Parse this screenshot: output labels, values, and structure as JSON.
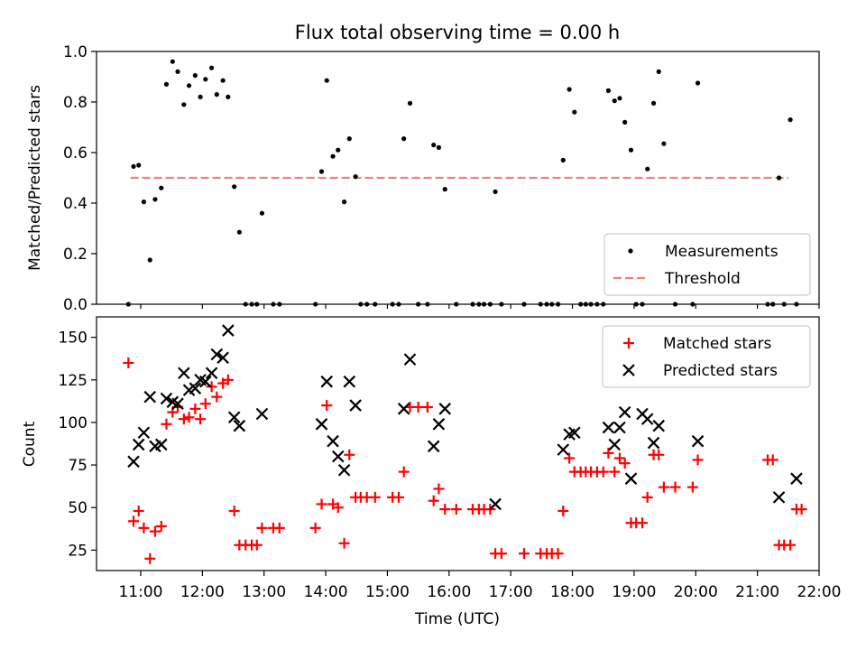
{
  "title": "Flux total observing time = 0.00 h",
  "chart_data": [
    {
      "type": "scatter",
      "title": "Flux total observing time = 0.00 h",
      "xlabel": "",
      "ylabel": "Matched/Predicted stars",
      "xlim": [
        "10:17",
        "22:00"
      ],
      "ylim": [
        0,
        1.0
      ],
      "yticks": [
        0.0,
        0.2,
        0.4,
        0.6,
        0.8,
        1.0
      ],
      "ytick_labels": [
        "0.0",
        "0.2",
        "0.4",
        "0.6",
        "0.8",
        "1.0"
      ],
      "legend": {
        "position": "lower-right",
        "entries": [
          "Measurements",
          "Threshold"
        ]
      },
      "threshold": {
        "name": "Threshold",
        "value": 0.5,
        "x_range": [
          "10:50",
          "21:30"
        ],
        "color": "#f08080"
      },
      "series": [
        {
          "name": "Measurements",
          "color": "#000000",
          "marker": "dot",
          "points": [
            [
              "10:48",
              0.0
            ],
            [
              "10:53",
              0.545
            ],
            [
              "10:58",
              0.55
            ],
            [
              "11:03",
              0.405
            ],
            [
              "11:09",
              0.175
            ],
            [
              "11:14",
              0.415
            ],
            [
              "11:20",
              0.46
            ],
            [
              "11:25",
              0.87
            ],
            [
              "11:31",
              0.96
            ],
            [
              "11:36",
              0.92
            ],
            [
              "11:42",
              0.79
            ],
            [
              "11:47",
              0.865
            ],
            [
              "11:53",
              0.905
            ],
            [
              "11:58",
              0.82
            ],
            [
              "12:03",
              0.89
            ],
            [
              "12:09",
              0.935
            ],
            [
              "12:14",
              0.83
            ],
            [
              "12:20",
              0.885
            ],
            [
              "12:25",
              0.82
            ],
            [
              "12:31",
              0.465
            ],
            [
              "12:36",
              0.285
            ],
            [
              "12:42",
              0.0
            ],
            [
              "12:48",
              0.0
            ],
            [
              "12:53",
              0.0
            ],
            [
              "12:58",
              0.36
            ],
            [
              "13:09",
              0.0
            ],
            [
              "13:15",
              0.0
            ],
            [
              "13:50",
              0.0
            ],
            [
              "13:56",
              0.525
            ],
            [
              "14:01",
              0.885
            ],
            [
              "14:07",
              0.585
            ],
            [
              "14:12",
              0.61
            ],
            [
              "14:18",
              0.405
            ],
            [
              "14:23",
              0.655
            ],
            [
              "14:29",
              0.505
            ],
            [
              "14:34",
              0.0
            ],
            [
              "14:40",
              0.0
            ],
            [
              "14:48",
              0.0
            ],
            [
              "15:05",
              0.0
            ],
            [
              "15:11",
              0.0
            ],
            [
              "15:16",
              0.655
            ],
            [
              "15:22",
              0.795
            ],
            [
              "15:30",
              0.0
            ],
            [
              "15:39",
              0.0
            ],
            [
              "15:45",
              0.63
            ],
            [
              "15:50",
              0.62
            ],
            [
              "15:56",
              0.455
            ],
            [
              "16:07",
              0.0
            ],
            [
              "16:23",
              0.0
            ],
            [
              "16:29",
              0.0
            ],
            [
              "16:34",
              0.0
            ],
            [
              "16:40",
              0.0
            ],
            [
              "16:45",
              0.445
            ],
            [
              "16:51",
              0.0
            ],
            [
              "17:13",
              0.0
            ],
            [
              "17:29",
              0.0
            ],
            [
              "17:35",
              0.0
            ],
            [
              "17:40",
              0.0
            ],
            [
              "17:46",
              0.0
            ],
            [
              "17:51",
              0.57
            ],
            [
              "17:57",
              0.85
            ],
            [
              "18:02",
              0.76
            ],
            [
              "18:08",
              0.0
            ],
            [
              "18:13",
              0.0
            ],
            [
              "18:18",
              0.0
            ],
            [
              "18:24",
              0.0
            ],
            [
              "18:30",
              0.0
            ],
            [
              "18:35",
              0.845
            ],
            [
              "18:41",
              0.805
            ],
            [
              "18:46",
              0.815
            ],
            [
              "18:51",
              0.72
            ],
            [
              "18:57",
              0.61
            ],
            [
              "19:02",
              0.0
            ],
            [
              "19:08",
              0.0
            ],
            [
              "19:13",
              0.535
            ],
            [
              "19:19",
              0.795
            ],
            [
              "19:24",
              0.92
            ],
            [
              "19:29",
              0.635
            ],
            [
              "19:40",
              0.0
            ],
            [
              "19:57",
              0.0
            ],
            [
              "20:02",
              0.875
            ],
            [
              "21:10",
              0.0
            ],
            [
              "21:15",
              0.0
            ],
            [
              "21:21",
              0.5
            ],
            [
              "21:26",
              0.0
            ],
            [
              "21:32",
              0.73
            ],
            [
              "21:38",
              0.0
            ]
          ]
        }
      ]
    },
    {
      "type": "scatter",
      "title": "",
      "xlabel": "Time (UTC)",
      "ylabel": "Count",
      "xlim": [
        "10:17",
        "22:00"
      ],
      "ylim": [
        13,
        162
      ],
      "yticks": [
        25,
        50,
        75,
        100,
        125,
        150
      ],
      "ytick_labels": [
        "25",
        "50",
        "75",
        "100",
        "125",
        "150"
      ],
      "xticks": [
        "11:00",
        "12:00",
        "13:00",
        "14:00",
        "15:00",
        "16:00",
        "17:00",
        "18:00",
        "19:00",
        "20:00",
        "21:00",
        "22:00"
      ],
      "legend": {
        "position": "top-right",
        "entries": [
          "Matched stars",
          "Predicted stars"
        ]
      },
      "series": [
        {
          "name": "Matched stars",
          "color": "#ff0000",
          "marker": "plus",
          "points": [
            [
              "10:48",
              135
            ],
            [
              "10:53",
              42
            ],
            [
              "10:58",
              48
            ],
            [
              "11:03",
              38
            ],
            [
              "11:09",
              20
            ],
            [
              "11:14",
              36
            ],
            [
              "11:20",
              39
            ],
            [
              "11:25",
              99
            ],
            [
              "11:31",
              106
            ],
            [
              "11:36",
              109
            ],
            [
              "11:42",
              102
            ],
            [
              "11:47",
              103
            ],
            [
              "11:53",
              108
            ],
            [
              "11:58",
              102
            ],
            [
              "12:03",
              111
            ],
            [
              "12:09",
              121
            ],
            [
              "12:14",
              115
            ],
            [
              "12:20",
              123
            ],
            [
              "12:25",
              125
            ],
            [
              "12:31",
              48
            ],
            [
              "12:36",
              28
            ],
            [
              "12:42",
              28
            ],
            [
              "12:48",
              28
            ],
            [
              "12:53",
              28
            ],
            [
              "12:58",
              38
            ],
            [
              "13:09",
              38
            ],
            [
              "13:15",
              38
            ],
            [
              "13:50",
              38
            ],
            [
              "13:56",
              52
            ],
            [
              "14:01",
              110
            ],
            [
              "14:07",
              52
            ],
            [
              "14:12",
              50
            ],
            [
              "14:18",
              29
            ],
            [
              "14:23",
              81
            ],
            [
              "14:29",
              56
            ],
            [
              "14:34",
              56
            ],
            [
              "14:40",
              56
            ],
            [
              "14:48",
              56
            ],
            [
              "15:05",
              56
            ],
            [
              "15:11",
              56
            ],
            [
              "15:16",
              71
            ],
            [
              "15:22",
              109
            ],
            [
              "15:30",
              109
            ],
            [
              "15:39",
              109
            ],
            [
              "15:45",
              54
            ],
            [
              "15:50",
              61
            ],
            [
              "15:56",
              49
            ],
            [
              "16:07",
              49
            ],
            [
              "16:23",
              49
            ],
            [
              "16:29",
              49
            ],
            [
              "16:34",
              49
            ],
            [
              "16:40",
              49
            ],
            [
              "16:45",
              23
            ],
            [
              "16:51",
              23
            ],
            [
              "17:13",
              23
            ],
            [
              "17:29",
              23
            ],
            [
              "17:35",
              23
            ],
            [
              "17:40",
              23
            ],
            [
              "17:46",
              23
            ],
            [
              "17:51",
              48
            ],
            [
              "17:57",
              79
            ],
            [
              "18:02",
              71
            ],
            [
              "18:08",
              71
            ],
            [
              "18:13",
              71
            ],
            [
              "18:18",
              71
            ],
            [
              "18:24",
              71
            ],
            [
              "18:30",
              71
            ],
            [
              "18:35",
              82
            ],
            [
              "18:41",
              71
            ],
            [
              "18:46",
              79
            ],
            [
              "18:51",
              76
            ],
            [
              "18:57",
              41
            ],
            [
              "19:02",
              41
            ],
            [
              "19:08",
              41
            ],
            [
              "19:13",
              56
            ],
            [
              "19:19",
              81
            ],
            [
              "19:24",
              81
            ],
            [
              "19:29",
              62
            ],
            [
              "19:40",
              62
            ],
            [
              "19:57",
              62
            ],
            [
              "20:02",
              78
            ],
            [
              "21:10",
              78
            ],
            [
              "21:15",
              78
            ],
            [
              "21:21",
              28
            ],
            [
              "21:26",
              28
            ],
            [
              "21:32",
              28
            ],
            [
              "21:38",
              49
            ],
            [
              "21:43",
              49
            ]
          ]
        },
        {
          "name": "Predicted stars",
          "color": "#000000",
          "marker": "x",
          "points": [
            [
              "10:53",
              77
            ],
            [
              "10:58",
              87
            ],
            [
              "11:03",
              94
            ],
            [
              "11:09",
              115
            ],
            [
              "11:14",
              86
            ],
            [
              "11:20",
              87
            ],
            [
              "11:25",
              114
            ],
            [
              "11:31",
              112
            ],
            [
              "11:36",
              111
            ],
            [
              "11:42",
              129
            ],
            [
              "11:47",
              119
            ],
            [
              "11:53",
              120
            ],
            [
              "11:58",
              125
            ],
            [
              "12:03",
              124
            ],
            [
              "12:09",
              129
            ],
            [
              "12:14",
              140
            ],
            [
              "12:20",
              138
            ],
            [
              "12:25",
              154
            ],
            [
              "12:31",
              103
            ],
            [
              "12:36",
              98
            ],
            [
              "12:58",
              105
            ],
            [
              "13:56",
              99
            ],
            [
              "14:01",
              124
            ],
            [
              "14:07",
              89
            ],
            [
              "14:12",
              80
            ],
            [
              "14:18",
              72
            ],
            [
              "14:23",
              124
            ],
            [
              "14:29",
              110
            ],
            [
              "15:16",
              108
            ],
            [
              "15:22",
              137
            ],
            [
              "15:45",
              86
            ],
            [
              "15:50",
              99
            ],
            [
              "15:56",
              108
            ],
            [
              "16:45",
              52
            ],
            [
              "17:51",
              84
            ],
            [
              "17:57",
              93
            ],
            [
              "18:02",
              94
            ],
            [
              "18:35",
              97
            ],
            [
              "18:41",
              87
            ],
            [
              "18:46",
              97
            ],
            [
              "18:51",
              106
            ],
            [
              "18:57",
              67
            ],
            [
              "19:08",
              105
            ],
            [
              "19:13",
              102
            ],
            [
              "19:19",
              88
            ],
            [
              "19:24",
              98
            ],
            [
              "20:02",
              89
            ],
            [
              "21:21",
              56
            ],
            [
              "21:38",
              67
            ]
          ]
        }
      ]
    }
  ]
}
